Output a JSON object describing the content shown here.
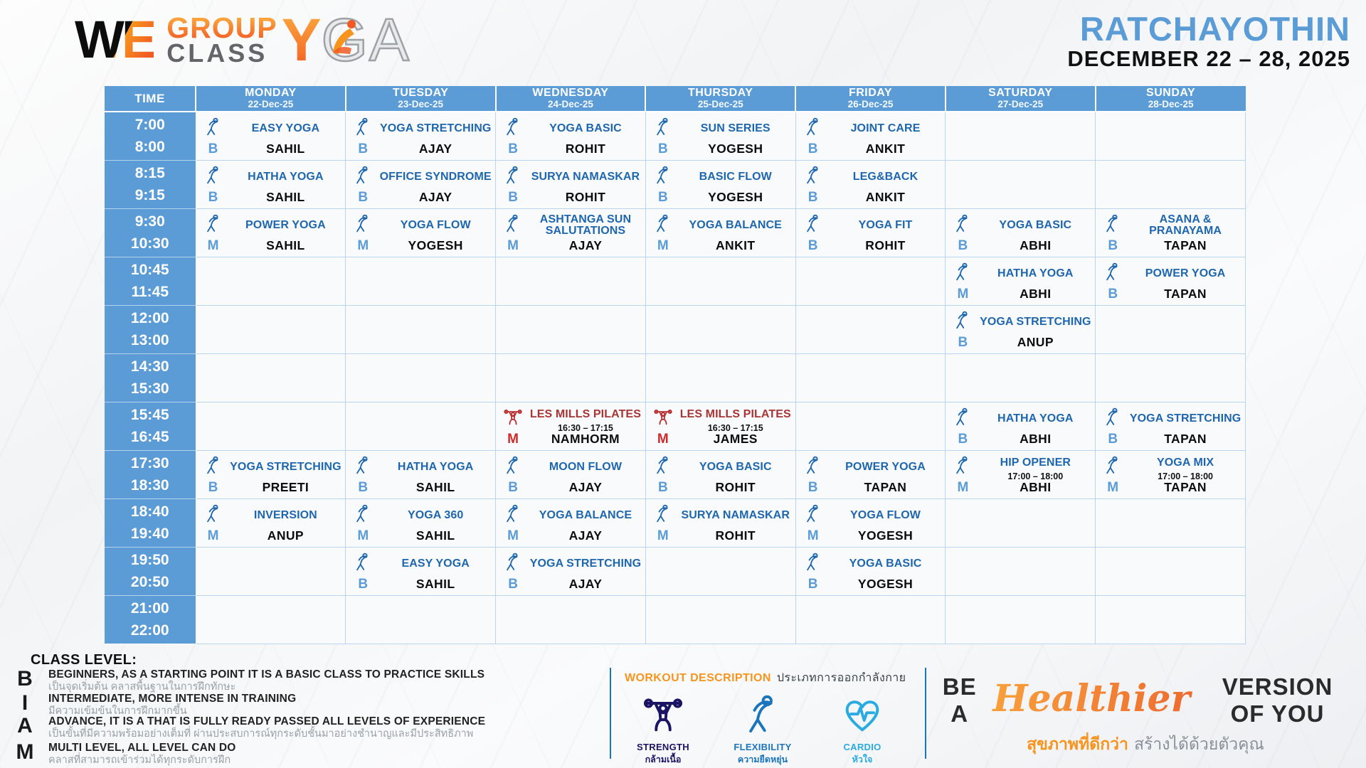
{
  "header": {
    "logo": {
      "we": "WE",
      "group": "GROUP",
      "class_word": "CLASS",
      "yoga_y": "Y",
      "yoga_rest": "GA"
    },
    "location": "RATCHAYOTHIN",
    "date_range": "DECEMBER 22 – 28, 2025"
  },
  "colors": {
    "header_blue": "#5b9cd6",
    "class_blue": "#1e66ae",
    "red_class": "#a93434",
    "orange": "#f7941d",
    "strength_navy": "#1b1464",
    "flexibility_blue": "#1b75bb",
    "cardio_blue": "#29abe2"
  },
  "schedule": {
    "time_header": "TIME",
    "days": [
      {
        "name": "MONDAY",
        "date": "22-Dec-25"
      },
      {
        "name": "TUESDAY",
        "date": "23-Dec-25"
      },
      {
        "name": "WEDNESDAY",
        "date": "24-Dec-25"
      },
      {
        "name": "THURSDAY",
        "date": "25-Dec-25"
      },
      {
        "name": "FRIDAY",
        "date": "26-Dec-25"
      },
      {
        "name": "SATURDAY",
        "date": "27-Dec-25"
      },
      {
        "name": "SUNDAY",
        "date": "28-Dec-25"
      }
    ],
    "time_slots": [
      [
        "7:00",
        "8:00"
      ],
      [
        "8:15",
        "9:15"
      ],
      [
        "9:30",
        "10:30"
      ],
      [
        "10:45",
        "11:45"
      ],
      [
        "12:00",
        "13:00"
      ],
      [
        "14:30",
        "15:30"
      ],
      [
        "15:45",
        "16:45"
      ],
      [
        "17:30",
        "18:30"
      ],
      [
        "18:40",
        "19:40"
      ],
      [
        "19:50",
        "20:50"
      ],
      [
        "21:00",
        "22:00"
      ]
    ],
    "entries": [
      {
        "row": 0,
        "day": 0,
        "name": "EASY YOGA",
        "level": "B",
        "instructor": "SAHIL",
        "icon": "flexibility-icon",
        "theme": "blue"
      },
      {
        "row": 1,
        "day": 0,
        "name": "HATHA YOGA",
        "level": "B",
        "instructor": "SAHIL",
        "icon": "flexibility-icon",
        "theme": "blue"
      },
      {
        "row": 2,
        "day": 0,
        "name": "POWER YOGA",
        "level": "M",
        "instructor": "SAHIL",
        "icon": "flexibility-icon",
        "theme": "blue"
      },
      {
        "row": 7,
        "day": 0,
        "name": "YOGA STRETCHING",
        "level": "B",
        "instructor": "PREETI",
        "icon": "flexibility-icon",
        "theme": "blue"
      },
      {
        "row": 8,
        "day": 0,
        "name": "INVERSION",
        "level": "M",
        "instructor": "ANUP",
        "icon": "flexibility-icon",
        "theme": "blue"
      },
      {
        "row": 0,
        "day": 1,
        "name": "YOGA STRETCHING",
        "level": "B",
        "instructor": "AJAY",
        "icon": "flexibility-icon",
        "theme": "blue"
      },
      {
        "row": 1,
        "day": 1,
        "name": "OFFICE SYNDROME",
        "level": "B",
        "instructor": "AJAY",
        "icon": "flexibility-icon",
        "theme": "blue"
      },
      {
        "row": 2,
        "day": 1,
        "name": "YOGA FLOW",
        "level": "M",
        "instructor": "YOGESH",
        "icon": "flexibility-icon",
        "theme": "blue"
      },
      {
        "row": 7,
        "day": 1,
        "name": "HATHA YOGA",
        "level": "B",
        "instructor": "SAHIL",
        "icon": "flexibility-icon",
        "theme": "blue"
      },
      {
        "row": 8,
        "day": 1,
        "name": "YOGA 360",
        "level": "M",
        "instructor": "SAHIL",
        "icon": "flexibility-icon",
        "theme": "blue"
      },
      {
        "row": 9,
        "day": 1,
        "name": "EASY YOGA",
        "level": "B",
        "instructor": "SAHIL",
        "icon": "flexibility-icon",
        "theme": "blue"
      },
      {
        "row": 0,
        "day": 2,
        "name": "YOGA BASIC",
        "level": "B",
        "instructor": "ROHIT",
        "icon": "flexibility-icon",
        "theme": "blue"
      },
      {
        "row": 1,
        "day": 2,
        "name": "SURYA NAMASKAR",
        "level": "B",
        "instructor": "ROHIT",
        "icon": "flexibility-icon",
        "theme": "blue"
      },
      {
        "row": 2,
        "day": 2,
        "name": "ASHTANGA SUN SALUTATIONS",
        "level": "M",
        "instructor": "AJAY",
        "icon": "flexibility-icon",
        "theme": "blue"
      },
      {
        "row": 6,
        "day": 2,
        "name": "LES MILLS PILATES",
        "note": "16:30 – 17:15",
        "level": "M",
        "instructor": "NAMHORM",
        "icon": "strength-icon",
        "theme": "red"
      },
      {
        "row": 7,
        "day": 2,
        "name": "MOON FLOW",
        "level": "B",
        "instructor": "AJAY",
        "icon": "flexibility-icon",
        "theme": "blue"
      },
      {
        "row": 8,
        "day": 2,
        "name": "YOGA BALANCE",
        "level": "M",
        "instructor": "AJAY",
        "icon": "flexibility-icon",
        "theme": "blue"
      },
      {
        "row": 9,
        "day": 2,
        "name": "YOGA STRETCHING",
        "level": "B",
        "instructor": "AJAY",
        "icon": "flexibility-icon",
        "theme": "blue"
      },
      {
        "row": 0,
        "day": 3,
        "name": "SUN SERIES",
        "level": "B",
        "instructor": "YOGESH",
        "icon": "flexibility-icon",
        "theme": "blue"
      },
      {
        "row": 1,
        "day": 3,
        "name": "BASIC FLOW",
        "level": "B",
        "instructor": "YOGESH",
        "icon": "flexibility-icon",
        "theme": "blue"
      },
      {
        "row": 2,
        "day": 3,
        "name": "YOGA BALANCE",
        "level": "M",
        "instructor": "ANKIT",
        "icon": "flexibility-icon",
        "theme": "blue"
      },
      {
        "row": 6,
        "day": 3,
        "name": "LES MILLS PILATES",
        "note": "16:30 – 17:15",
        "level": "M",
        "instructor": "JAMES",
        "icon": "strength-icon",
        "theme": "red"
      },
      {
        "row": 7,
        "day": 3,
        "name": "YOGA BASIC",
        "level": "B",
        "instructor": "ROHIT",
        "icon": "flexibility-icon",
        "theme": "blue"
      },
      {
        "row": 8,
        "day": 3,
        "name": "SURYA NAMASKAR",
        "level": "M",
        "instructor": "ROHIT",
        "icon": "flexibility-icon",
        "theme": "blue"
      },
      {
        "row": 0,
        "day": 4,
        "name": "JOINT CARE",
        "level": "B",
        "instructor": "ANKIT",
        "icon": "flexibility-icon",
        "theme": "blue"
      },
      {
        "row": 1,
        "day": 4,
        "name": "LEG&BACK",
        "level": "B",
        "instructor": "ANKIT",
        "icon": "flexibility-icon",
        "theme": "blue"
      },
      {
        "row": 2,
        "day": 4,
        "name": "YOGA FIT",
        "level": "B",
        "instructor": "ROHIT",
        "icon": "flexibility-icon",
        "theme": "blue"
      },
      {
        "row": 7,
        "day": 4,
        "name": "POWER YOGA",
        "level": "B",
        "instructor": "TAPAN",
        "icon": "flexibility-icon",
        "theme": "blue"
      },
      {
        "row": 8,
        "day": 4,
        "name": "YOGA FLOW",
        "level": "M",
        "instructor": "YOGESH",
        "icon": "flexibility-icon",
        "theme": "blue"
      },
      {
        "row": 9,
        "day": 4,
        "name": "YOGA BASIC",
        "level": "B",
        "instructor": "YOGESH",
        "icon": "flexibility-icon",
        "theme": "blue"
      },
      {
        "row": 2,
        "day": 5,
        "name": "YOGA BASIC",
        "level": "B",
        "instructor": "ABHI",
        "icon": "flexibility-icon",
        "theme": "blue"
      },
      {
        "row": 3,
        "day": 5,
        "name": "HATHA YOGA",
        "level": "M",
        "instructor": "ABHI",
        "icon": "flexibility-icon",
        "theme": "blue"
      },
      {
        "row": 4,
        "day": 5,
        "name": "YOGA STRETCHING",
        "level": "B",
        "instructor": "ANUP",
        "icon": "flexibility-icon",
        "theme": "blue"
      },
      {
        "row": 6,
        "day": 5,
        "name": "HATHA YOGA",
        "level": "B",
        "instructor": "ABHI",
        "icon": "flexibility-icon",
        "theme": "blue"
      },
      {
        "row": 7,
        "day": 5,
        "name": "HIP OPENER",
        "note": "17:00 – 18:00",
        "level": "M",
        "instructor": "ABHI",
        "icon": "flexibility-icon",
        "theme": "blue"
      },
      {
        "row": 2,
        "day": 6,
        "name": "ASANA & PRANAYAMA",
        "level": "B",
        "instructor": "TAPAN",
        "icon": "flexibility-icon",
        "theme": "blue"
      },
      {
        "row": 3,
        "day": 6,
        "name": "POWER YOGA",
        "level": "B",
        "instructor": "TAPAN",
        "icon": "flexibility-icon",
        "theme": "blue"
      },
      {
        "row": 6,
        "day": 6,
        "name": "YOGA STRETCHING",
        "level": "B",
        "instructor": "TAPAN",
        "icon": "flexibility-icon",
        "theme": "blue"
      },
      {
        "row": 7,
        "day": 6,
        "name": "YOGA MIX",
        "note": "17:00 – 18:00",
        "level": "M",
        "instructor": "TAPAN",
        "icon": "flexibility-icon",
        "theme": "blue"
      }
    ]
  },
  "class_level": {
    "title": "CLASS LEVEL:",
    "levels": [
      {
        "letter": "B",
        "en": "BEGINNERS, AS A STARTING POINT IT IS A BASIC CLASS TO PRACTICE SKILLS",
        "th": "เป็นจุดเริ่มต้น คลาสพื้นฐานในการฝึกทักษะ"
      },
      {
        "letter": "I",
        "en": "INTERMEDIATE, MORE INTENSE IN TRAINING",
        "th": "มีความเข้มข้นในการฝึกมากขึ้น"
      },
      {
        "letter": "A",
        "en": "ADVANCE, IT IS A THAT IS FULLY READY PASSED ALL LEVELS OF EXPERIENCE",
        "th": "เป็นขั้นที่มีความพร้อมอย่างเต็มที่ ผ่านประสบการณ์ทุกระดับชั้นมาอย่างชำนาญและมีประสิทธิภาพ"
      },
      {
        "letter": "M",
        "en": "MULTI LEVEL, ALL LEVEL CAN DO",
        "th": "คลาสที่สามารถเข้าร่วมได้ทุกระดับการฝึก"
      }
    ]
  },
  "workout_description": {
    "title_en": "WORKOUT DESCRIPTION",
    "title_th": "ประเภทการออกกำลังกาย",
    "items": [
      {
        "name": "STRENGTH",
        "th": "กล้ามเนื้อ",
        "icon": "strength-icon",
        "color": "#1b1464"
      },
      {
        "name": "FLEXIBILITY",
        "th": "ความยืดหยุ่น",
        "icon": "flexibility-icon",
        "color": "#1b75bb"
      },
      {
        "name": "CARDIO",
        "th": "หัวใจ",
        "icon": "cardio-icon",
        "color": "#29abe2"
      }
    ]
  },
  "tagline": {
    "pre": "BE A",
    "highlight": "Healthier",
    "post": "VERSION OF YOU",
    "th_orange": "สุขภาพที่ดีกว่า",
    "th_gray": "สร้างได้ด้วยตัวคุณ"
  }
}
